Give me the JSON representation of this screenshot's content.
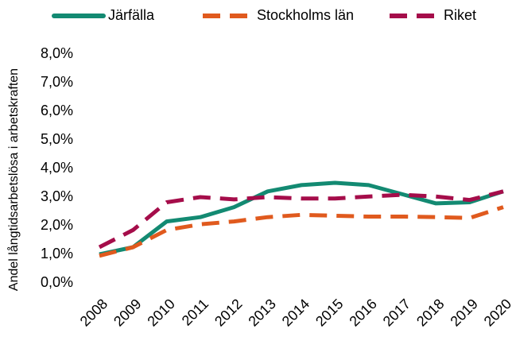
{
  "chart_data": {
    "type": "line",
    "y_label": "Andel långtidsarbetslösa i arbetskraften",
    "categories": [
      "2008",
      "2009",
      "2010",
      "2011",
      "2012",
      "2013",
      "2014",
      "2015",
      "2016",
      "2017",
      "2018",
      "2019",
      "2020"
    ],
    "series": [
      {
        "name": "Järfälla",
        "color": "#138a72",
        "dashed": false,
        "values": [
          1.0,
          1.25,
          2.15,
          2.3,
          2.65,
          3.2,
          3.42,
          3.5,
          3.42,
          3.1,
          2.78,
          2.82,
          3.2
        ]
      },
      {
        "name": "Stockholms län",
        "color": "#e05a1e",
        "dashed": true,
        "values": [
          0.95,
          1.25,
          1.85,
          2.05,
          2.15,
          2.3,
          2.38,
          2.35,
          2.32,
          2.32,
          2.3,
          2.27,
          2.65
        ]
      },
      {
        "name": "Riket",
        "color": "#a50d4a",
        "dashed": true,
        "values": [
          1.25,
          1.85,
          2.82,
          3.0,
          2.92,
          3.0,
          2.95,
          2.95,
          3.02,
          3.08,
          3.02,
          2.9,
          3.2
        ]
      }
    ],
    "ylim": [
      0,
      8
    ],
    "yticks": [
      {
        "value": 0,
        "label": "0,0%"
      },
      {
        "value": 1,
        "label": "1,0%"
      },
      {
        "value": 2,
        "label": "2,0%"
      },
      {
        "value": 3,
        "label": "3,0%"
      },
      {
        "value": 4,
        "label": "4,0%"
      },
      {
        "value": 5,
        "label": "5,0%"
      },
      {
        "value": 6,
        "label": "6,0%"
      },
      {
        "value": 7,
        "label": "7,0%"
      },
      {
        "value": 8,
        "label": "8,0%"
      }
    ],
    "legend": "top"
  }
}
